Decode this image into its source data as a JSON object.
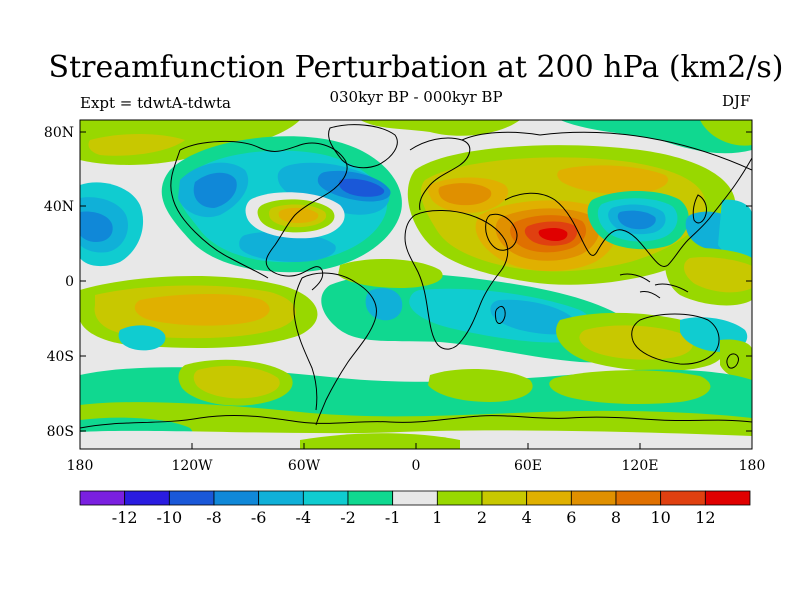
{
  "title": "Streamfunction Perturbation at 200 hPa (km2/s)",
  "subtitle": "030kyr BP - 000kyr BP",
  "left_label": "Expt = tdwtA-tdwta",
  "right_label": "DJF",
  "y_axis_labels": [
    "80N",
    "40N",
    "0",
    "40S",
    "80S"
  ],
  "x_axis_labels": [
    "180",
    "120W",
    "60W",
    "0",
    "60E",
    "120E",
    "180"
  ],
  "colorbar": {
    "colors": [
      "#7a20e0",
      "#2a1ce0",
      "#1a58d8",
      "#1088d8",
      "#10b0d8",
      "#10ccd0",
      "#10d890",
      "#e8e8e8",
      "#98d800",
      "#c8c800",
      "#e0b000",
      "#e09000",
      "#e07000",
      "#e04010",
      "#e00000"
    ],
    "labels": [
      "-12",
      "-10",
      "-8",
      "-6",
      "-4",
      "-2",
      "-1",
      "1",
      "2",
      "4",
      "6",
      "8",
      "10",
      "12"
    ]
  },
  "colors": {
    "background_field": "#e8e8e8",
    "coastline": "#000000"
  }
}
